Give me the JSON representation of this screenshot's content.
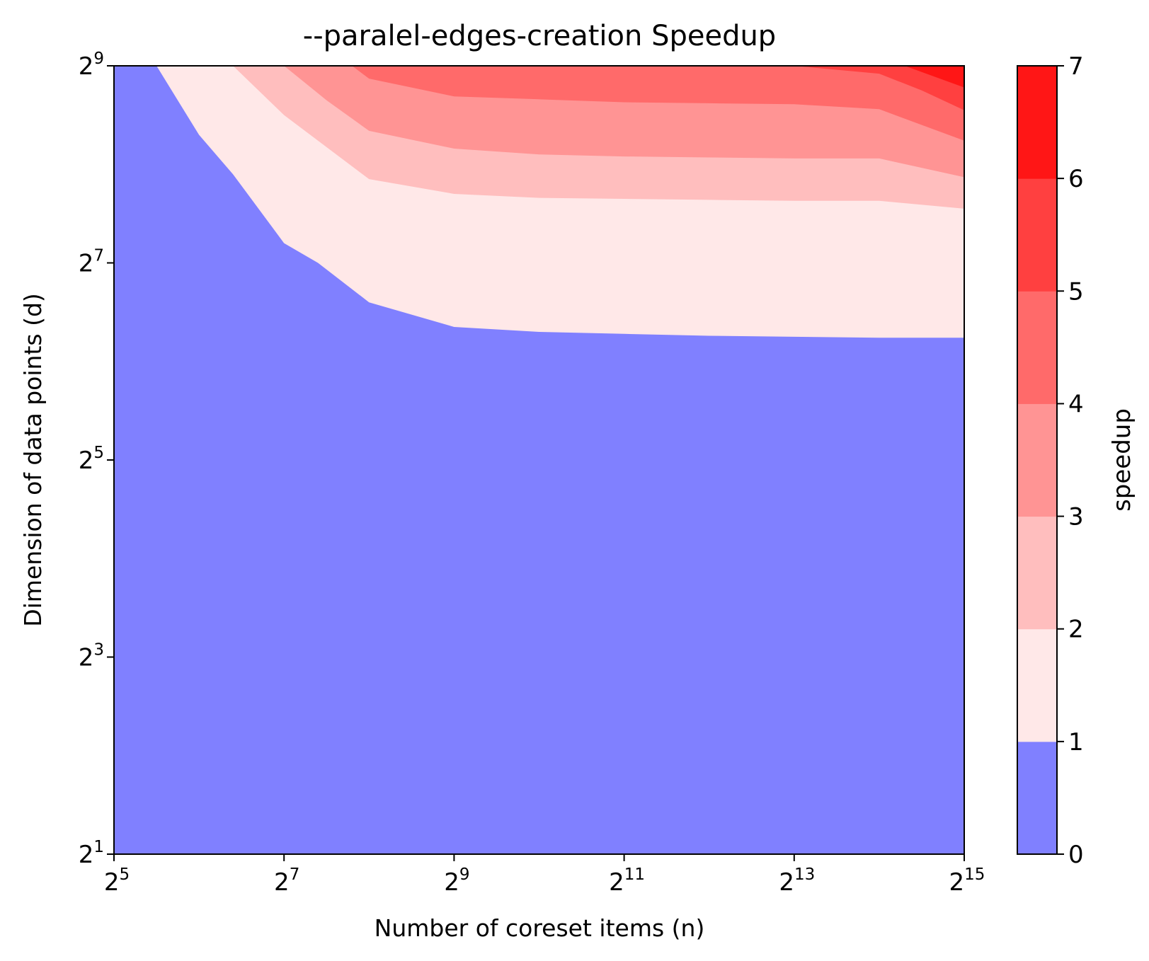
{
  "chart_data": {
    "type": "contour",
    "title": "--paralel-edges-creation Speedup",
    "xlabel": "Number of coreset items (n)",
    "ylabel": "Dimension of data points (d)",
    "x_scale": "log2",
    "y_scale": "log2",
    "xlim_exp": [
      5,
      15
    ],
    "ylim_exp": [
      1,
      9
    ],
    "x_ticks": [
      {
        "base": "2",
        "exp": "5",
        "value": 5
      },
      {
        "base": "2",
        "exp": "7",
        "value": 7
      },
      {
        "base": "2",
        "exp": "9",
        "value": 9
      },
      {
        "base": "2",
        "exp": "11",
        "value": 11
      },
      {
        "base": "2",
        "exp": "13",
        "value": 13
      },
      {
        "base": "2",
        "exp": "15",
        "value": 15
      }
    ],
    "y_ticks": [
      {
        "base": "2",
        "exp": "1",
        "value": 1
      },
      {
        "base": "2",
        "exp": "3",
        "value": 3
      },
      {
        "base": "2",
        "exp": "5",
        "value": 5
      },
      {
        "base": "2",
        "exp": "7",
        "value": 7
      },
      {
        "base": "2",
        "exp": "9",
        "value": 9
      }
    ],
    "colorbar": {
      "label": "speedup",
      "ticks": [
        "0",
        "1",
        "2",
        "3",
        "4",
        "5",
        "6",
        "7"
      ],
      "range": [
        0,
        7
      ],
      "levels": [
        {
          "range": [
            0,
            1
          ],
          "color": "#8080ff"
        },
        {
          "range": [
            1,
            2
          ],
          "color": "#ffe8e8"
        },
        {
          "range": [
            2,
            3
          ],
          "color": "#ffbebe"
        },
        {
          "range": [
            3,
            4
          ],
          "color": "#ff9494"
        },
        {
          "range": [
            4,
            5
          ],
          "color": "#ff6a6a"
        },
        {
          "range": [
            5,
            6
          ],
          "color": "#ff4040"
        },
        {
          "range": [
            6,
            7
          ],
          "color": "#ff1616"
        }
      ]
    },
    "contour_boundaries": [
      {
        "level": 1,
        "points": [
          [
            5.5,
            9
          ],
          [
            6.0,
            8.3
          ],
          [
            6.4,
            7.9
          ],
          [
            7.0,
            7.2
          ],
          [
            7.4,
            7.0
          ],
          [
            8.0,
            6.6
          ],
          [
            9.0,
            6.35
          ],
          [
            10.0,
            6.3
          ],
          [
            11.0,
            6.28
          ],
          [
            12.0,
            6.26
          ],
          [
            13.0,
            6.25
          ],
          [
            14.0,
            6.24
          ],
          [
            15.0,
            6.24
          ]
        ]
      },
      {
        "level": 2,
        "points": [
          [
            6.4,
            9
          ],
          [
            7.0,
            8.5
          ],
          [
            8.0,
            7.85
          ],
          [
            9.0,
            7.7
          ],
          [
            10.0,
            7.66
          ],
          [
            11.0,
            7.65
          ],
          [
            12.0,
            7.64
          ],
          [
            13.0,
            7.63
          ],
          [
            14.0,
            7.63
          ],
          [
            15.0,
            7.55
          ]
        ]
      },
      {
        "level": 3,
        "points": [
          [
            7.0,
            9
          ],
          [
            7.5,
            8.65
          ],
          [
            8.0,
            8.34
          ],
          [
            9.0,
            8.16
          ],
          [
            10.0,
            8.1
          ],
          [
            11.0,
            8.08
          ],
          [
            12.0,
            8.07
          ],
          [
            13.0,
            8.06
          ],
          [
            14.0,
            8.06
          ],
          [
            15.0,
            7.87
          ]
        ]
      },
      {
        "level": 4,
        "points": [
          [
            7.8,
            9
          ],
          [
            8.0,
            8.87
          ],
          [
            9.0,
            8.69
          ],
          [
            10.0,
            8.66
          ],
          [
            11.0,
            8.63
          ],
          [
            12.0,
            8.62
          ],
          [
            13.0,
            8.61
          ],
          [
            14.0,
            8.56
          ],
          [
            15.0,
            8.24
          ]
        ]
      },
      {
        "level": 5,
        "points": [
          [
            13.0,
            9
          ],
          [
            14.0,
            8.92
          ],
          [
            14.5,
            8.75
          ],
          [
            15.0,
            8.55
          ]
        ]
      },
      {
        "level": 6,
        "points": [
          [
            14.3,
            9
          ],
          [
            15.0,
            8.78
          ]
        ]
      }
    ]
  }
}
